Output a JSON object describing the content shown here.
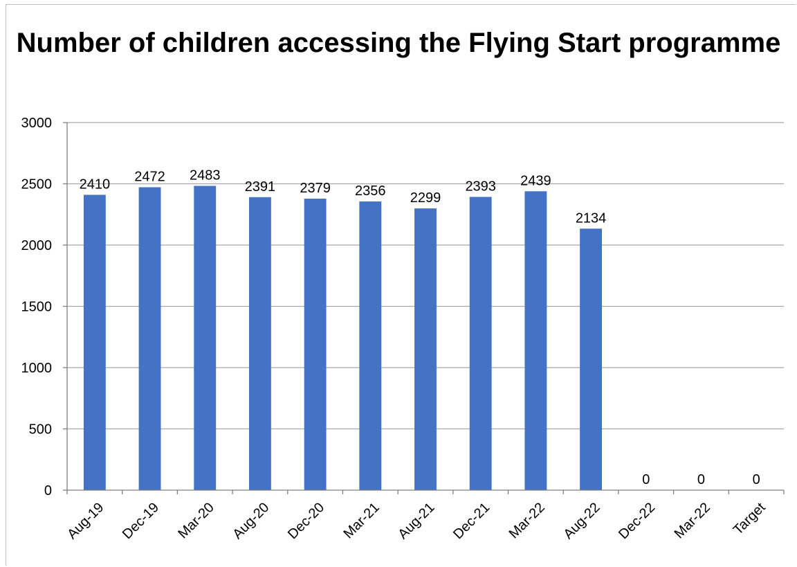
{
  "chart_data": {
    "type": "bar",
    "title": "Number of children accessing the Flying Start programme",
    "categories": [
      "Aug-19",
      "Dec-19",
      "Mar-20",
      "Aug-20",
      "Dec-20",
      "Mar-21",
      "Aug-21",
      "Dec-21",
      "Mar-22",
      "Aug-22",
      "Dec-22",
      "Mar-22",
      "Target"
    ],
    "values": [
      2410,
      2472,
      2483,
      2391,
      2379,
      2356,
      2299,
      2393,
      2439,
      2134,
      0,
      0,
      0
    ],
    "ylim": [
      0,
      3000
    ],
    "yticks": [
      0,
      500,
      1000,
      1500,
      2000,
      2500,
      3000
    ],
    "grid": true,
    "legend": "none",
    "bar_color": "#4472c4",
    "data_labels": true
  }
}
